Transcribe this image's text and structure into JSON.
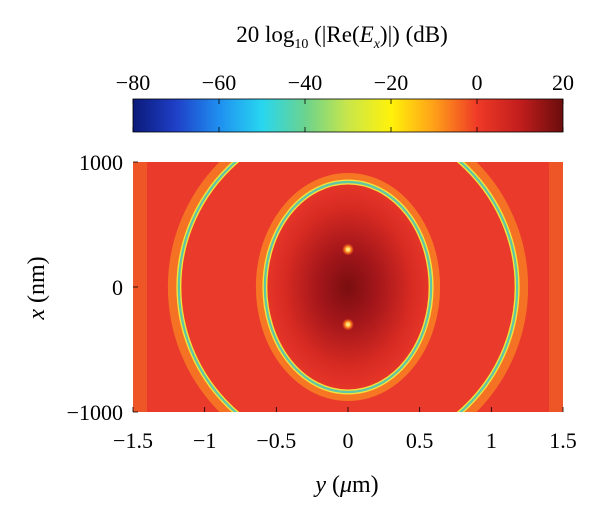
{
  "chart_data": {
    "type": "heatmap",
    "colorbar": {
      "title": {
        "prefix": "20 log",
        "subscript": "10",
        "open": " (|Re(",
        "var": "E",
        "var_sub": "x",
        "close": ")|) (dB)"
      },
      "range": [
        -80,
        20
      ],
      "ticks": [
        -80,
        -60,
        -40,
        -20,
        0,
        20
      ],
      "tick_labels": [
        "−80",
        "−60",
        "−40",
        "−20",
        "0",
        "20"
      ],
      "colormap": [
        "#0b1a7a",
        "#1f3fc7",
        "#1f8ff0",
        "#28d6f0",
        "#6ad38e",
        "#c9e64a",
        "#fff20a",
        "#ffa018",
        "#ef3a27",
        "#c21d1d",
        "#6b0d0d"
      ]
    },
    "x_axis": {
      "label_var": "y",
      "label_rest": " (",
      "label_mu": "μ",
      "label_unit": "m)",
      "range": [
        -1.5,
        1.5
      ],
      "ticks": [
        -1.5,
        -1,
        -0.5,
        0,
        0.5,
        1,
        1.5
      ],
      "tick_labels": [
        "−1.5",
        "−1",
        "−0.5",
        "0",
        "0.5",
        "1",
        "1.5"
      ]
    },
    "y_axis": {
      "label_var": "x",
      "label_rest": " (nm)",
      "range": [
        -1000,
        1000
      ],
      "ticks": [
        -1000,
        0,
        1000
      ],
      "tick_labels": [
        "−1000",
        "0",
        "1000"
      ]
    },
    "features": {
      "inner_null_ring": {
        "center": [
          0,
          0
        ],
        "semi_axis_y_um": 0.58,
        "semi_axis_x_nm": 840
      },
      "outer_null_arcs": {
        "center": [
          0,
          0
        ],
        "semi_axis_y_um": 1.18,
        "semi_axis_x_nm": 1340
      },
      "hot_spots": [
        {
          "y_um": 0,
          "x_nm": 300
        },
        {
          "y_um": 0,
          "x_nm": -300
        }
      ],
      "peak_db": 20,
      "background_db": 0
    }
  }
}
